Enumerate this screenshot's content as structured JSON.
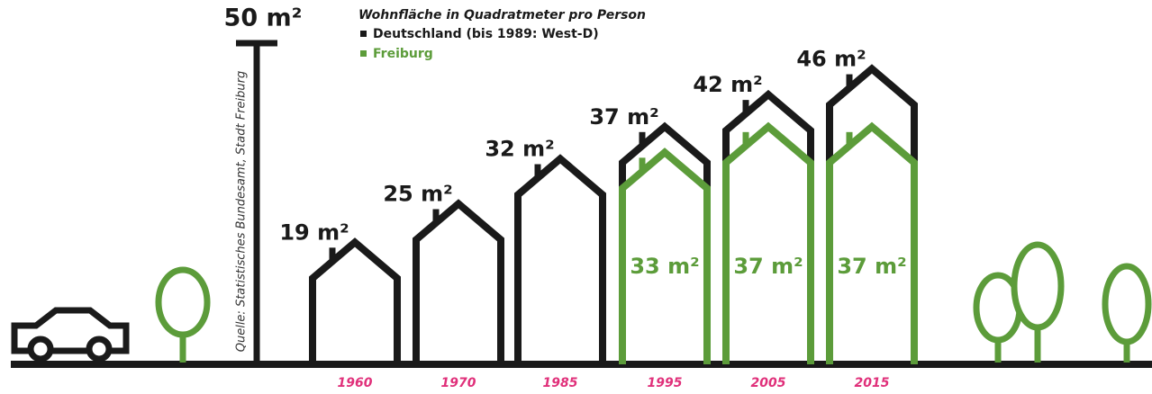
{
  "chart_data": {
    "type": "bar",
    "legend_title": "Wohnfläche in Quadratmeter pro Person",
    "source": "Quelle: Statistisches Bundesamt, Stadt Freiburg",
    "categories": [
      "1960",
      "1970",
      "1985",
      "1995",
      "2005",
      "2015"
    ],
    "series": [
      {
        "name": "Deutschland (bis 1989: West-D)",
        "color": "#1a1a1a",
        "values": [
          19,
          25,
          32,
          37,
          42,
          46
        ],
        "value_labels": [
          "19 m²",
          "25 m²",
          "32 m²",
          "37 m²",
          "42 m²",
          "46 m²"
        ]
      },
      {
        "name": "Freiburg",
        "color": "#5c9c3a",
        "values": [
          null,
          null,
          null,
          33,
          37,
          37
        ],
        "value_labels": [
          null,
          null,
          null,
          "33 m²",
          "37 m²",
          "37 m²"
        ]
      }
    ],
    "ylim": [
      0,
      50
    ],
    "yticks": [
      {
        "value": 50,
        "label": "50 m²"
      }
    ],
    "category_color": "#e0307a"
  }
}
